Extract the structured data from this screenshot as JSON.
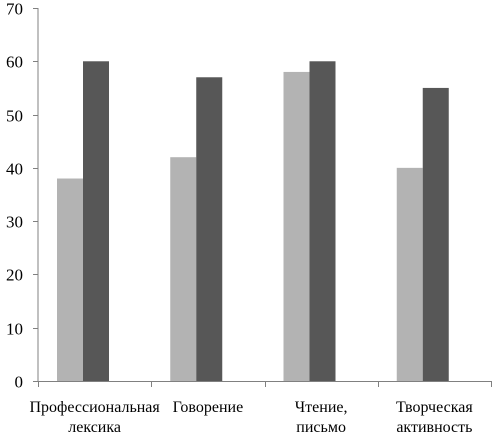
{
  "chart_data": {
    "type": "bar",
    "categories": [
      [
        "Профессиональная",
        "лексика"
      ],
      [
        "Говорение"
      ],
      [
        "Чтение,",
        "письмо"
      ],
      [
        "Творческая",
        "активность"
      ]
    ],
    "series": [
      {
        "values": [
          38,
          42,
          58,
          40
        ],
        "color": "#b3b3b3"
      },
      {
        "values": [
          60,
          57,
          60,
          55
        ],
        "color": "#575757"
      }
    ],
    "ylim": [
      0,
      70
    ],
    "yticks": [
      0,
      10,
      20,
      30,
      40,
      50,
      60,
      70
    ],
    "grid": false,
    "legend": "none"
  }
}
